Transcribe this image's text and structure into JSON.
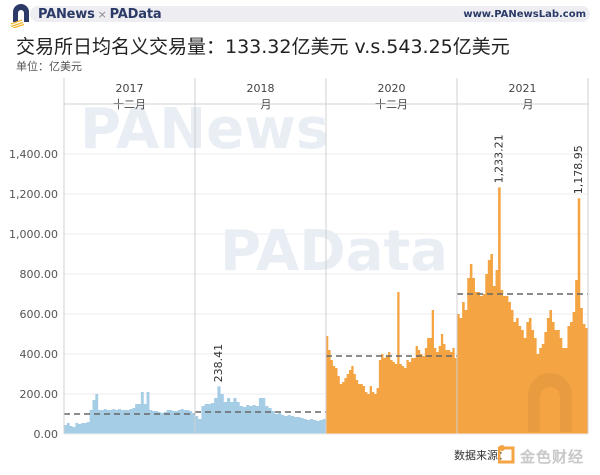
{
  "header": {
    "brand_left": "PANews",
    "brand_sep": "×",
    "brand_right": "PAData",
    "site": "www.PANewsLab.com"
  },
  "title": "交易所日均名义交易量：133.32亿美元 v.s.543.25亿美元",
  "unit": "单位：亿美元",
  "footer": {
    "source": "数据来源：",
    "watermark": "金色财经"
  },
  "colors": {
    "blue": "#a6cde6",
    "orange": "#f5a443",
    "avg_line": "#666666",
    "grid": "#ececec",
    "panel_border": "#d0d0d0"
  },
  "chart_data": {
    "type": "bar",
    "title": "交易所日均名义交易量：133.32亿美元 v.s.543.25亿美元",
    "ylabel": "单位：亿美元",
    "xlabel": "",
    "ylim": [
      0,
      1400
    ],
    "yticks": [
      "0.00",
      "200.00",
      "400.00",
      "600.00",
      "800.00",
      "1,000.00",
      "1,200.00",
      "1,400.00"
    ],
    "grid": true,
    "panels": [
      {
        "year": "2017",
        "month": "十二月",
        "color": "blue",
        "average": 100,
        "values": [
          45,
          55,
          40,
          35,
          55,
          50,
          55,
          55,
          60,
          120,
          170,
          200,
          120,
          120,
          125,
          120,
          120,
          125,
          120,
          125,
          120,
          120,
          120,
          125,
          130,
          150,
          150,
          210,
          150,
          210,
          120,
          115,
          115,
          110,
          105,
          110,
          120,
          120,
          115,
          115,
          120,
          125,
          120,
          120,
          115,
          105
        ]
      },
      {
        "year": "2018",
        "month": "一月",
        "color": "blue",
        "average": 110,
        "labels": [
          {
            "index": 7,
            "text": "238.41"
          }
        ],
        "values": [
          90,
          75,
          140,
          150,
          150,
          155,
          180,
          238,
          200,
          160,
          180,
          160,
          180,
          160,
          140,
          135,
          145,
          140,
          145,
          140,
          180,
          180,
          140,
          130,
          115,
          100,
          105,
          95,
          90,
          95,
          90,
          85,
          85,
          80,
          75,
          70,
          75,
          70,
          65,
          70,
          75
        ]
      },
      {
        "year": "2020",
        "month": "十二月",
        "color": "orange",
        "average": 390,
        "values": [
          490,
          420,
          370,
          340,
          330,
          290,
          250,
          260,
          280,
          300,
          320,
          340,
          300,
          270,
          250,
          250,
          240,
          210,
          200,
          240,
          210,
          200,
          230,
          370,
          400,
          380,
          390,
          410,
          370,
          360,
          350,
          710,
          350,
          340,
          330,
          370,
          360,
          380,
          380,
          440,
          420,
          400,
          390,
          430,
          480,
          480,
          620,
          430,
          410,
          440,
          500,
          450,
          420,
          420,
          410,
          430,
          380
        ]
      },
      {
        "year": "2021",
        "month": "一月",
        "color": "orange",
        "average": 700,
        "labels": [
          {
            "index": 16,
            "text": "1,233.21"
          },
          {
            "index": 47,
            "text": "1,178.95"
          }
        ],
        "values": [
          600,
          580,
          660,
          620,
          780,
          850,
          780,
          710,
          710,
          690,
          700,
          800,
          870,
          900,
          740,
          820,
          1233,
          720,
          690,
          690,
          660,
          620,
          560,
          580,
          540,
          520,
          480,
          560,
          580,
          520,
          480,
          400,
          430,
          450,
          510,
          580,
          620,
          560,
          520,
          520,
          480,
          430,
          430,
          540,
          560,
          610,
          770,
          1179,
          630,
          550,
          530
        ]
      }
    ]
  }
}
